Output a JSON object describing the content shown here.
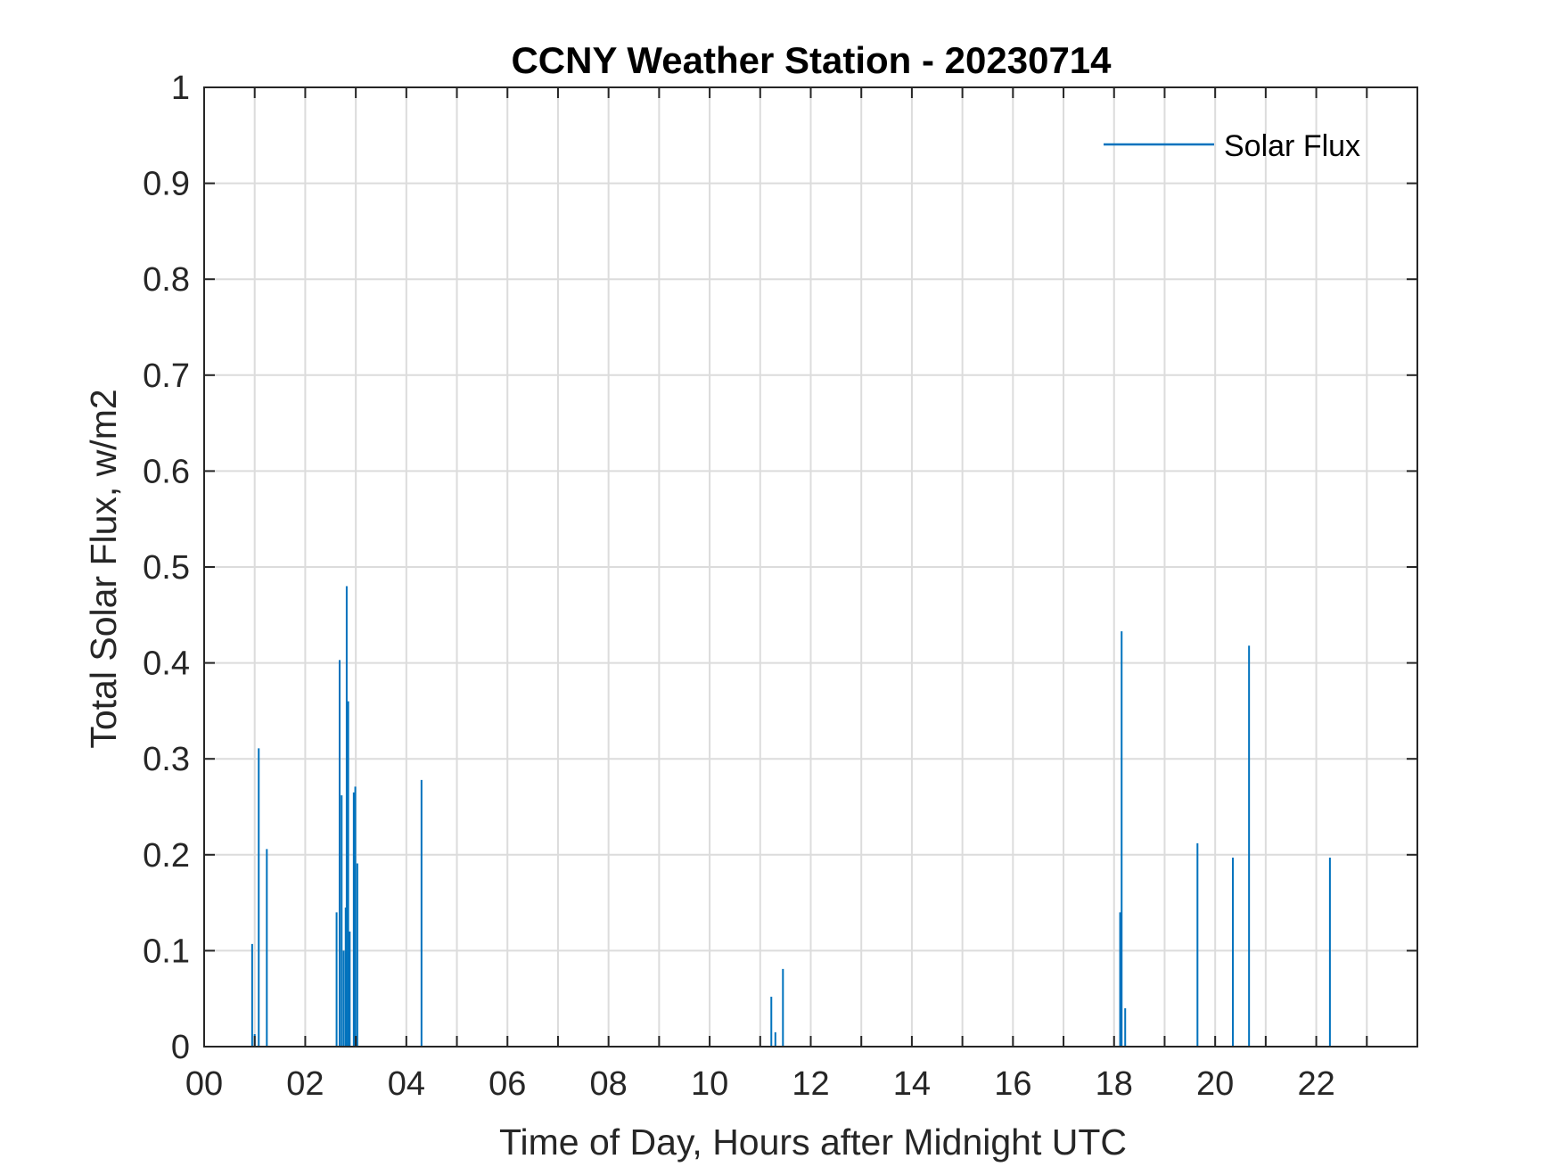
{
  "chart_data": {
    "type": "line",
    "title": "CCNY Weather Station - 20230714",
    "xlabel": "Time of Day, Hours after Midnight UTC",
    "ylabel": "Total Solar Flux, w/m2",
    "xlim": [
      0,
      24
    ],
    "ylim": [
      0,
      1
    ],
    "x_ticks": [
      0,
      2,
      4,
      6,
      8,
      10,
      12,
      14,
      16,
      18,
      20,
      22
    ],
    "x_tick_labels": [
      "00",
      "02",
      "04",
      "06",
      "08",
      "10",
      "12",
      "14",
      "16",
      "18",
      "20",
      "22"
    ],
    "x_grid_step": 1,
    "y_ticks": [
      0,
      0.1,
      0.2,
      0.3,
      0.4,
      0.5,
      0.6,
      0.7,
      0.8,
      0.9,
      1
    ],
    "y_tick_labels": [
      "0",
      "0.1",
      "0.2",
      "0.3",
      "0.4",
      "0.5",
      "0.6",
      "0.7",
      "0.8",
      "0.9",
      "1"
    ],
    "grid": true,
    "legend": {
      "position": "top-right",
      "entries": [
        "Solar Flux"
      ]
    },
    "series": [
      {
        "name": "Solar Flux",
        "color": "#0072BD",
        "spikes": [
          [
            0.95,
            0.107
          ],
          [
            1.0,
            0.013
          ],
          [
            1.08,
            0.311
          ],
          [
            1.24,
            0.206
          ],
          [
            2.62,
            0.14
          ],
          [
            2.68,
            0.403
          ],
          [
            2.72,
            0.262
          ],
          [
            2.76,
            0.1
          ],
          [
            2.8,
            0.145
          ],
          [
            2.82,
            0.48
          ],
          [
            2.85,
            0.36
          ],
          [
            2.88,
            0.12
          ],
          [
            2.96,
            0.265
          ],
          [
            2.99,
            0.271
          ],
          [
            3.03,
            0.191
          ],
          [
            4.3,
            0.278
          ],
          [
            11.22,
            0.052
          ],
          [
            11.3,
            0.015
          ],
          [
            11.45,
            0.081
          ],
          [
            18.12,
            0.14
          ],
          [
            18.15,
            0.433
          ],
          [
            18.22,
            0.04
          ],
          [
            19.65,
            0.212
          ],
          [
            20.35,
            0.197
          ],
          [
            20.67,
            0.418
          ],
          [
            22.27,
            0.197
          ]
        ]
      }
    ]
  }
}
